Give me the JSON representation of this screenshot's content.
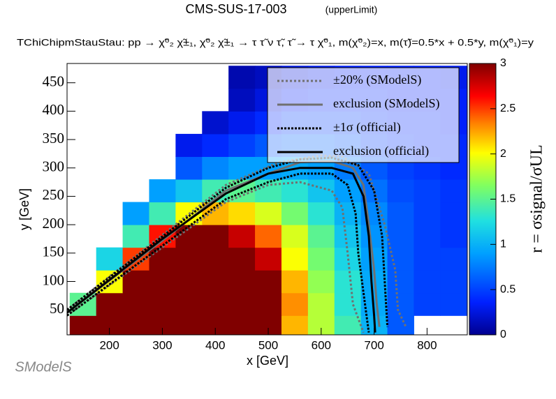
{
  "chart_data": {
    "type": "heatmap",
    "title": "CMS-SUS-17-003",
    "subtitle": "(upperLimit)",
    "description": "TChiChipmStauStau: pp → χ̃⁰₂ χ̃±₁, χ̃⁰₂ χ̃±₁ → τ τ̃ ν τ̃, τ̃ → τ χ̃⁰₁, m(χ̃⁰₂)=x, m(τ̃)=0.5*x + 0.5*y, m(χ̃⁰₁)=y",
    "x_label": "x [GeV]",
    "y_label": "y [GeV]",
    "z_label": "r = σsignal/σUL",
    "logo": "SModelS",
    "xlim": [
      120,
      876
    ],
    "ylim": [
      6,
      484
    ],
    "zlim": [
      0,
      3
    ],
    "xticks": [
      200,
      300,
      400,
      500,
      600,
      700,
      800
    ],
    "yticks": [
      50,
      100,
      150,
      200,
      250,
      300,
      350,
      400,
      450
    ],
    "zticks": [
      0,
      0.5,
      1,
      1.5,
      2,
      2.5,
      3
    ],
    "x_bins": [
      125,
      175,
      225,
      275,
      325,
      375,
      425,
      475,
      525,
      575,
      625,
      675,
      725,
      775,
      825,
      875
    ],
    "y_bins": [
      0,
      40,
      80,
      120,
      160,
      200,
      240,
      280,
      320,
      360,
      400,
      440,
      480
    ],
    "z": [
      [
        3,
        3,
        3,
        3,
        3,
        3,
        3,
        3,
        2.2,
        1.8,
        1.4,
        1.0,
        0.6,
        null,
        null
      ],
      [
        1.5,
        3,
        3,
        3,
        3,
        3,
        3,
        3,
        2.3,
        1.8,
        1.3,
        0.95,
        0.6,
        0.5,
        0.5
      ],
      [
        null,
        2.0,
        3,
        3,
        3,
        3,
        3,
        3,
        2.2,
        1.7,
        1.3,
        0.95,
        0.6,
        0.5,
        0.5
      ],
      [
        null,
        1.2,
        2.5,
        3,
        3,
        3,
        3,
        2.8,
        2.0,
        1.6,
        1.2,
        0.9,
        0.6,
        0.5,
        0.5
      ],
      [
        null,
        null,
        1.4,
        2.6,
        3,
        3,
        2.8,
        2.4,
        1.9,
        1.5,
        1.1,
        0.85,
        0.6,
        0.5,
        0.45
      ],
      [
        null,
        null,
        0.9,
        1.4,
        2.0,
        2.2,
        2.1,
        1.9,
        1.6,
        1.3,
        1.0,
        0.8,
        0.6,
        0.5,
        0.45
      ],
      [
        null,
        null,
        null,
        0.9,
        1.1,
        1.4,
        1.5,
        1.4,
        1.3,
        1.1,
        0.9,
        0.7,
        0.55,
        0.5,
        0.45
      ],
      [
        null,
        null,
        null,
        null,
        0.6,
        0.8,
        0.9,
        0.9,
        0.95,
        0.9,
        0.75,
        0.6,
        0.5,
        0.45,
        0.4
      ],
      [
        null,
        null,
        null,
        null,
        0.3,
        0.4,
        0.5,
        0.6,
        0.65,
        0.65,
        0.6,
        0.5,
        0.45,
        0.4,
        0.4
      ],
      [
        null,
        null,
        null,
        null,
        null,
        0.2,
        0.3,
        0.4,
        0.5,
        0.5,
        0.5,
        0.45,
        0.4,
        0.4,
        0.35
      ],
      [
        null,
        null,
        null,
        null,
        null,
        null,
        0.15,
        0.25,
        0.35,
        0.4,
        0.4,
        0.4,
        0.35,
        0.35,
        0.35
      ],
      [
        null,
        null,
        null,
        null,
        null,
        null,
        0.1,
        0.15,
        0.25,
        0.3,
        0.35,
        0.35,
        0.35,
        0.35,
        0.3
      ]
    ],
    "series": [
      {
        "name": "±20% (SModelS)",
        "color": "#707070",
        "dash": "3,3",
        "width": 3,
        "x": [
          120,
          420,
          500,
          560,
          620,
          640,
          650,
          660,
          680,
          null,
          120,
          420,
          520,
          600,
          640,
          690,
          720,
          740,
          745,
          760
        ],
        "y": [
          40,
          240,
          270,
          275,
          260,
          230,
          150,
          60,
          10,
          null,
          50,
          270,
          310,
          322,
          320,
          290,
          200,
          120,
          50,
          20
        ]
      },
      {
        "name": "exclusion (SModelS)",
        "color": "#707070",
        "dash": "none",
        "width": 3,
        "x": [
          120,
          300,
          420,
          500,
          560,
          620,
          660,
          680,
          690,
          700,
          705,
          710
        ],
        "y": [
          45,
          172,
          260,
          290,
          310,
          312,
          300,
          270,
          200,
          120,
          60,
          20
        ]
      },
      {
        "name": "±1σ (official)",
        "color": "#000000",
        "dash": "3,2",
        "width": 3,
        "x": [
          120,
          420,
          500,
          560,
          620,
          650,
          665,
          670,
          680,
          690,
          null,
          120,
          420,
          500,
          560,
          620,
          670,
          700,
          715,
          720,
          725
        ],
        "y": [
          40,
          245,
          275,
          290,
          290,
          270,
          220,
          150,
          80,
          10,
          null,
          50,
          265,
          300,
          315,
          318,
          305,
          260,
          180,
          100,
          20
        ]
      },
      {
        "name": "exclusion (official)",
        "color": "#000000",
        "dash": "none",
        "width": 3,
        "x": [
          120,
          300,
          420,
          500,
          560,
          620,
          660,
          680,
          690,
          695,
          700,
          702
        ],
        "y": [
          45,
          175,
          255,
          290,
          300,
          300,
          290,
          250,
          180,
          100,
          40,
          10
        ]
      }
    ]
  }
}
